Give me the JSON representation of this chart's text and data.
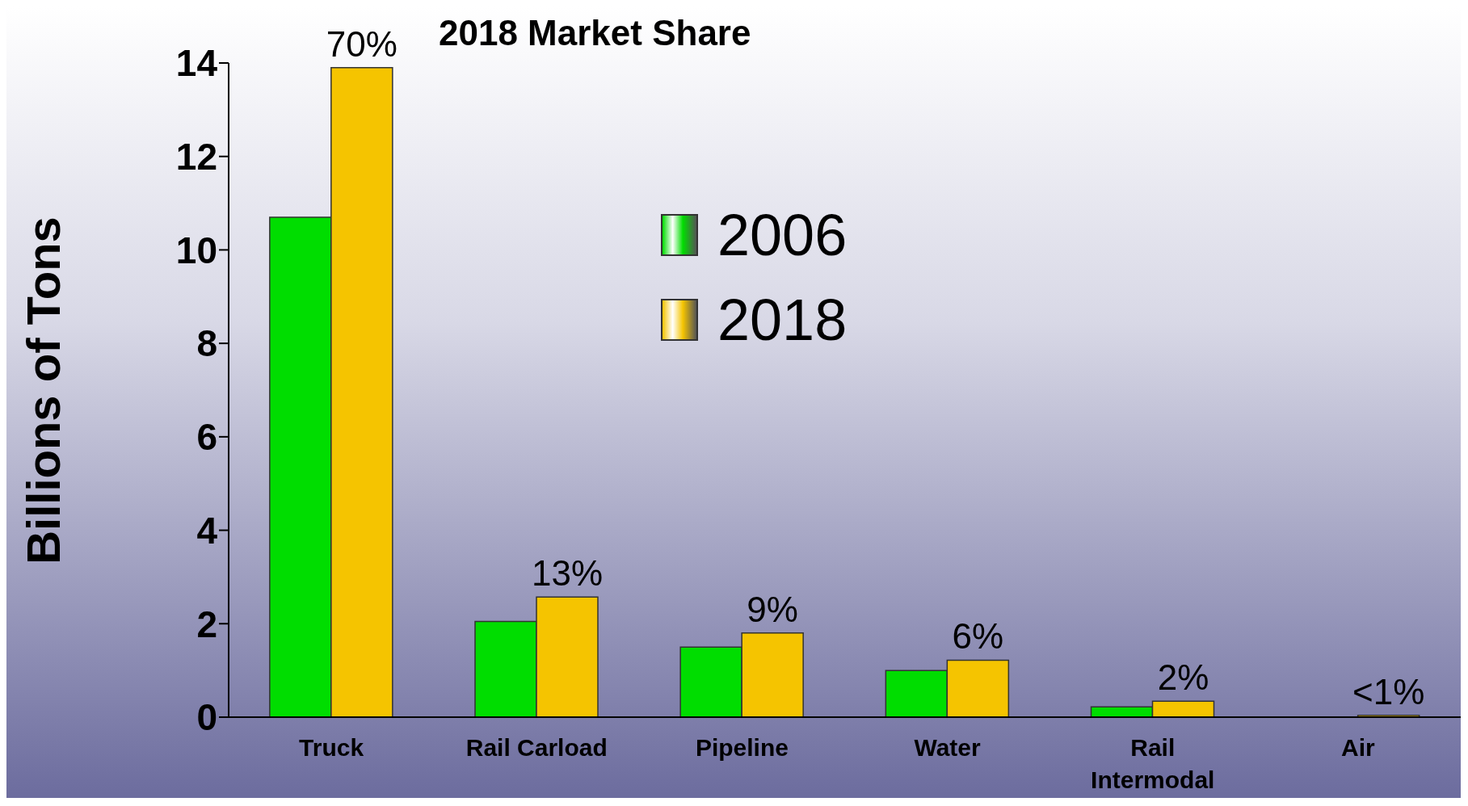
{
  "chart_data": {
    "type": "bar",
    "title": "2018 Market Share",
    "ylabel": "Billions of Tons",
    "categories": [
      "Truck",
      "Rail Carload",
      "Pipeline",
      "Water",
      "Rail Intermodal",
      "Air"
    ],
    "series": [
      {
        "name": "2006",
        "color": "#00dd00",
        "values": [
          10.7,
          2.05,
          1.5,
          1.0,
          0.22,
          0
        ]
      },
      {
        "name": "2018",
        "color": "#f5c400",
        "values": [
          13.9,
          2.57,
          1.8,
          1.22,
          0.34,
          0.04
        ]
      }
    ],
    "annotations": [
      {
        "text": "70%",
        "x": "Truck",
        "y": 13.9
      },
      {
        "text": "13%",
        "x": "Rail Carload",
        "y": 2.57
      },
      {
        "text": "9%",
        "x": "Pipeline",
        "y": 1.8
      },
      {
        "text": "6%",
        "x": "Water",
        "y": 1.22
      },
      {
        "text": "2%",
        "x": "Rail Intermodal",
        "y": 0.34
      },
      {
        "text": "<1%",
        "x": "Air",
        "y": 0.04
      }
    ],
    "ylim": [
      0,
      14
    ],
    "yticks": [
      0,
      2,
      4,
      6,
      8,
      10,
      12,
      14
    ],
    "grid": false,
    "legend": "top"
  }
}
